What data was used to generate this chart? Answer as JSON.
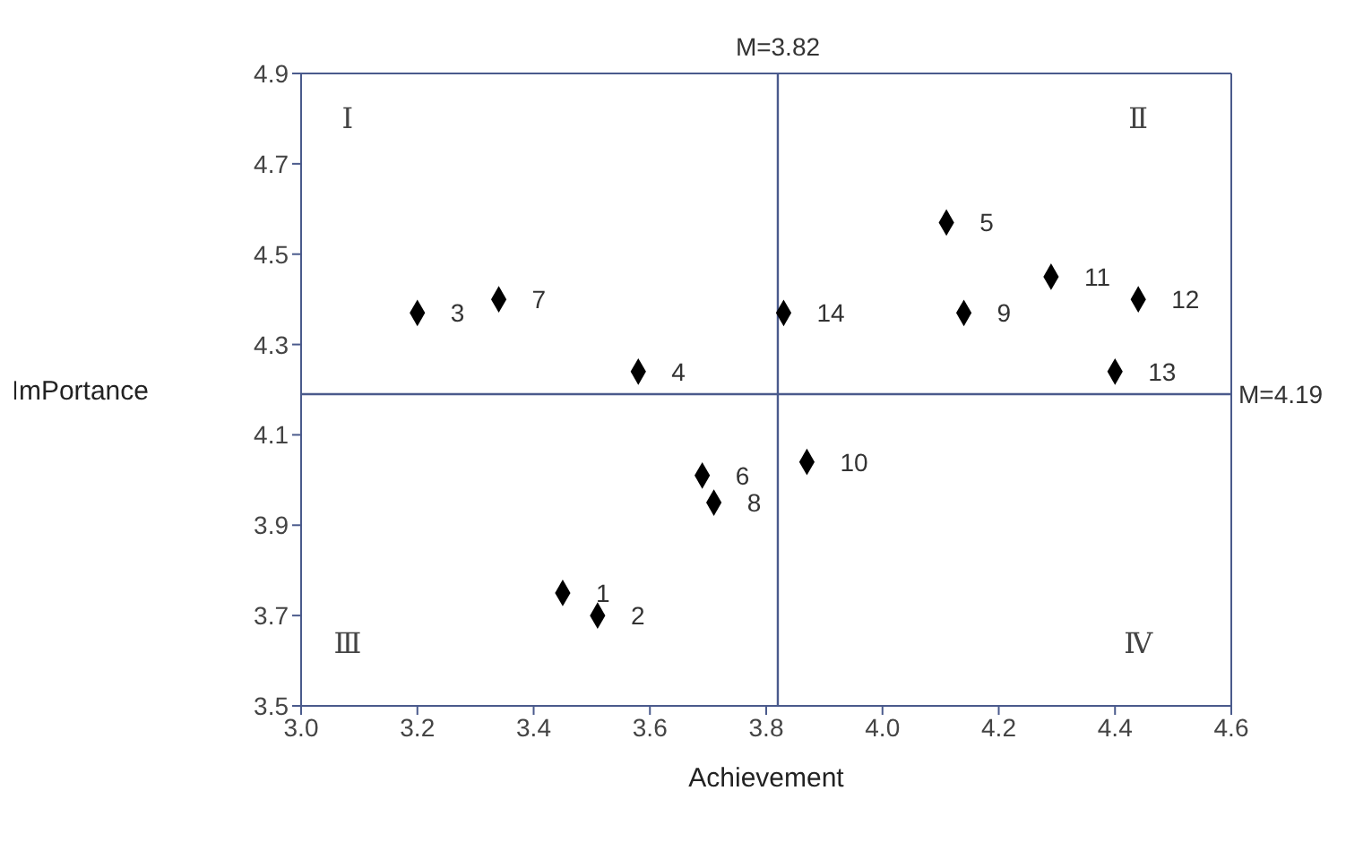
{
  "chart_data": {
    "type": "scatter",
    "xlabel": "Achievement",
    "ylabel": "ImPortance",
    "x": [
      3.45,
      3.51,
      3.2,
      3.58,
      4.11,
      3.69,
      3.34,
      3.71,
      4.14,
      3.87,
      4.29,
      4.44,
      4.4,
      3.83
    ],
    "series": [
      {
        "color": "#000000",
        "values": [
          3.75,
          3.7,
          4.37,
          4.24,
          4.57,
          4.01,
          4.4,
          3.95,
          4.37,
          4.04,
          4.45,
          4.4,
          4.24,
          4.37
        ]
      }
    ],
    "value_labels": [
      "1",
      "2",
      "3",
      "4",
      "5",
      "6",
      "7",
      "8",
      "9",
      "10",
      "11",
      "12",
      "13",
      "14"
    ],
    "marker": "diamond",
    "xlim": [
      3.0,
      4.6
    ],
    "xticks": [
      {
        "value": 3,
        "label": "3.0"
      },
      3.2,
      3.4,
      3.6,
      3.8,
      {
        "value": 4,
        "label": "4.0"
      },
      4.2,
      4.4,
      4.6
    ],
    "ylim": [
      3.5,
      4.9
    ],
    "yticks": [
      3.5,
      3.7,
      3.9,
      4.1,
      4.3,
      4.5,
      4.7,
      4.9
    ],
    "ref_lines": [
      {
        "axis": "x",
        "value": 3.82,
        "label": "M=3.82",
        "color": "#4a5a8c"
      },
      {
        "axis": "y",
        "value": 4.19,
        "label": "M=4.19",
        "color": "#4a5a8c"
      }
    ],
    "annotations": [
      "Ⅰ",
      "Ⅱ",
      "Ⅲ",
      "Ⅳ"
    ],
    "grid": false,
    "legend": false
  }
}
